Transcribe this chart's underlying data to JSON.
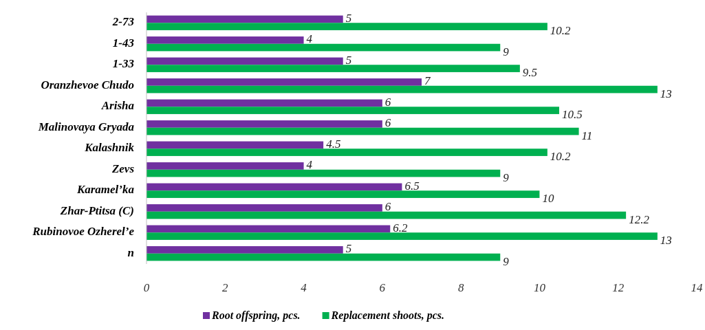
{
  "chart_data": {
    "type": "bar",
    "orientation": "horizontal",
    "categories": [
      "2-73",
      "1-43",
      "1-33",
      "Oranzhevoe Chudo",
      "Arisha",
      "Malinovaya Gryada",
      "Kalashnik",
      "Zevs",
      "Karamel’ka",
      "Zhar-Ptitsa (C)",
      "Rubinovoe Ozherel’e",
      "n"
    ],
    "series": [
      {
        "name": "Root offspring, pcs.",
        "color": "#7030a0",
        "values": [
          5,
          4,
          5,
          7,
          6,
          6,
          4.5,
          4,
          6.5,
          6,
          6.2,
          5
        ]
      },
      {
        "name": "Replacement shoots, pcs.",
        "color": "#00b050",
        "values": [
          10.2,
          9,
          9.5,
          13,
          10.5,
          11,
          10.2,
          9,
          10,
          12.2,
          13,
          9
        ]
      }
    ],
    "xlim": [
      0,
      14
    ],
    "xticks": [
      0,
      2,
      4,
      6,
      8,
      10,
      12,
      14
    ],
    "data_labels": true,
    "legend": "bottom"
  }
}
